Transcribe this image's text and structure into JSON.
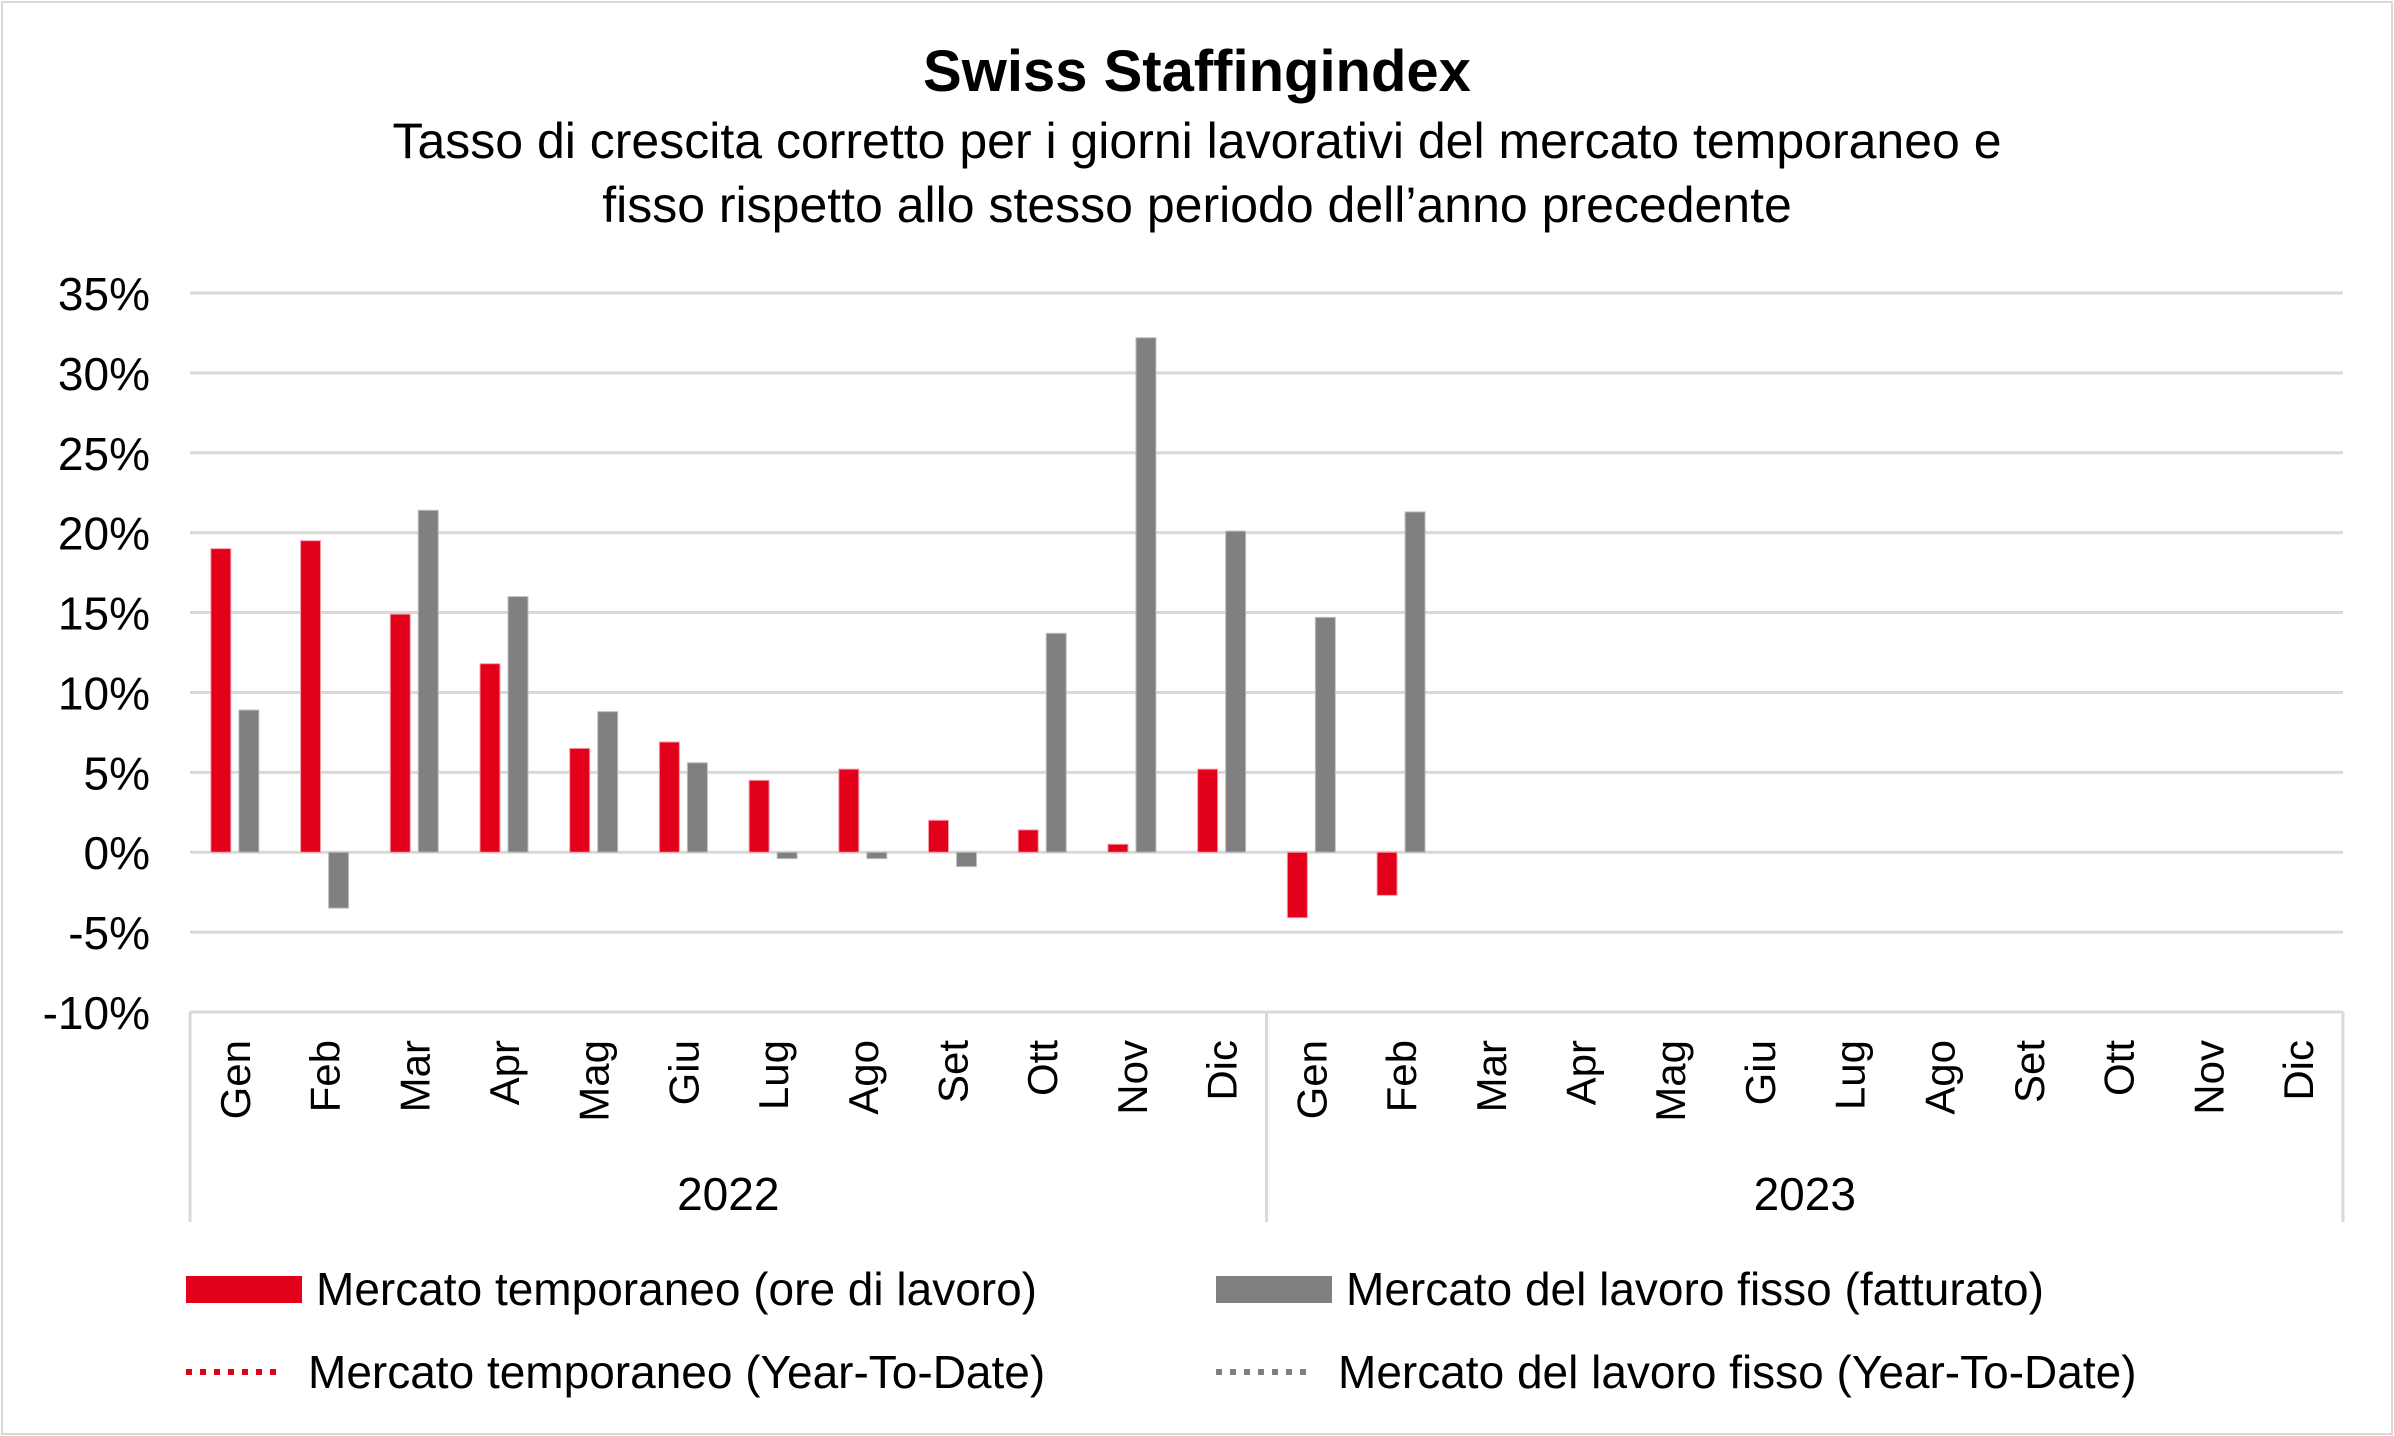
{
  "chart_data": {
    "type": "bar",
    "title": "Swiss Staffingindex",
    "subtitle": [
      "Tasso di crescita corretto per i giorni lavorativi del mercato temporaneo e",
      "fisso rispetto allo stesso periodo dell’anno precedente"
    ],
    "xlabel": "",
    "ylabel": "",
    "ylim": [
      -10,
      35
    ],
    "yticks": [
      35,
      30,
      25,
      20,
      15,
      10,
      5,
      0,
      -5,
      -10
    ],
    "ytick_labels": [
      "35%",
      "30%",
      "25%",
      "20%",
      "15%",
      "10%",
      "5%",
      "0%",
      "-5%",
      "-10%"
    ],
    "grid": true,
    "groups": [
      {
        "label": "2022",
        "categories": [
          "Gen",
          "Feb",
          "Mar",
          "Apr",
          "Mag",
          "Giu",
          "Lug",
          "Ago",
          "Set",
          "Ott",
          "Nov",
          "Dic"
        ]
      },
      {
        "label": "2023",
        "categories": [
          "Gen",
          "Feb",
          "Mar",
          "Apr",
          "Mag",
          "Giu",
          "Lug",
          "Ago",
          "Set",
          "Ott",
          "Nov",
          "Dic"
        ]
      }
    ],
    "series": [
      {
        "name": "Mercato temporaneo (ore di lavoro)",
        "color": "#e2001a",
        "values": [
          19.0,
          19.5,
          14.9,
          11.8,
          6.5,
          6.9,
          4.5,
          5.2,
          2.0,
          1.4,
          0.5,
          5.2,
          -4.1,
          -2.7,
          null,
          null,
          null,
          null,
          null,
          null,
          null,
          null,
          null,
          null
        ]
      },
      {
        "name": "Mercato del lavoro fisso (fatturato)",
        "color": "#808080",
        "values": [
          8.9,
          -3.5,
          21.4,
          16.0,
          8.8,
          5.6,
          -0.4,
          -0.4,
          -0.9,
          13.7,
          32.2,
          20.1,
          14.7,
          21.3,
          null,
          null,
          null,
          null,
          null,
          null,
          null,
          null,
          null,
          null
        ]
      }
    ],
    "legend": {
      "placement": "bottom",
      "items": [
        {
          "label": "Mercato temporaneo (ore di lavoro)",
          "style": "bar",
          "color": "#e2001a"
        },
        {
          "label": "Mercato del lavoro fisso (fatturato)",
          "style": "bar",
          "color": "#808080"
        },
        {
          "label": "Mercato temporaneo (Year-To-Date)",
          "style": "dotted-line",
          "color": "#e2001a"
        },
        {
          "label": "Mercato del lavoro fisso (Year-To-Date)",
          "style": "dotted-line",
          "color": "#808080"
        }
      ]
    }
  }
}
